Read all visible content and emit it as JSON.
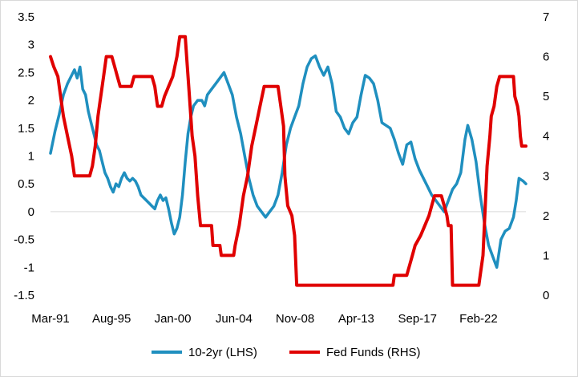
{
  "chart_data": {
    "type": "line",
    "title": "",
    "x_tick_labels": [
      "Mar-91",
      "Aug-95",
      "Jan-00",
      "Jun-04",
      "Nov-08",
      "Apr-13",
      "Sep-17",
      "Feb-22"
    ],
    "x_tick_values": [
      1991.17,
      1995.58,
      2000.0,
      2004.42,
      2008.83,
      2013.25,
      2017.67,
      2022.08
    ],
    "x_range": [
      1991.17,
      2025.5
    ],
    "y_left": {
      "min": -1.5,
      "max": 3.5,
      "ticks": [
        "-1.5",
        "-1",
        "-0.5",
        "0",
        "0.5",
        "1",
        "1.5",
        "2",
        "2.5",
        "3",
        "3.5"
      ]
    },
    "y_right": {
      "min": 0,
      "max": 7,
      "ticks": [
        "0",
        "1",
        "2",
        "3",
        "4",
        "5",
        "6",
        "7"
      ]
    },
    "gridlines": false,
    "legend_position": "bottom",
    "series": [
      {
        "name": "10-2yr (LHS)",
        "axis": "left",
        "color": "#1f8fbf",
        "points": [
          [
            1991.17,
            1.05
          ],
          [
            1991.5,
            1.45
          ],
          [
            1991.8,
            1.75
          ],
          [
            1992.1,
            2.1
          ],
          [
            1992.4,
            2.3
          ],
          [
            1992.7,
            2.45
          ],
          [
            1992.9,
            2.55
          ],
          [
            1993.1,
            2.4
          ],
          [
            1993.3,
            2.6
          ],
          [
            1993.5,
            2.2
          ],
          [
            1993.7,
            2.1
          ],
          [
            1993.9,
            1.8
          ],
          [
            1994.1,
            1.6
          ],
          [
            1994.3,
            1.4
          ],
          [
            1994.5,
            1.2
          ],
          [
            1994.7,
            1.1
          ],
          [
            1994.9,
            0.9
          ],
          [
            1995.1,
            0.7
          ],
          [
            1995.3,
            0.6
          ],
          [
            1995.5,
            0.45
          ],
          [
            1995.7,
            0.35
          ],
          [
            1995.9,
            0.5
          ],
          [
            1996.1,
            0.45
          ],
          [
            1996.3,
            0.6
          ],
          [
            1996.5,
            0.7
          ],
          [
            1996.7,
            0.6
          ],
          [
            1996.9,
            0.55
          ],
          [
            1997.1,
            0.6
          ],
          [
            1997.3,
            0.55
          ],
          [
            1997.5,
            0.45
          ],
          [
            1997.7,
            0.3
          ],
          [
            1997.9,
            0.25
          ],
          [
            1998.1,
            0.2
          ],
          [
            1998.3,
            0.15
          ],
          [
            1998.5,
            0.1
          ],
          [
            1998.7,
            0.05
          ],
          [
            1998.9,
            0.2
          ],
          [
            1999.1,
            0.3
          ],
          [
            1999.3,
            0.2
          ],
          [
            1999.5,
            0.25
          ],
          [
            1999.7,
            0.05
          ],
          [
            1999.9,
            -0.2
          ],
          [
            2000.1,
            -0.4
          ],
          [
            2000.3,
            -0.3
          ],
          [
            2000.5,
            -0.1
          ],
          [
            2000.7,
            0.3
          ],
          [
            2000.9,
            0.9
          ],
          [
            2001.1,
            1.4
          ],
          [
            2001.3,
            1.7
          ],
          [
            2001.5,
            1.9
          ],
          [
            2001.8,
            2.0
          ],
          [
            2002.1,
            2.0
          ],
          [
            2002.3,
            1.9
          ],
          [
            2002.5,
            2.1
          ],
          [
            2002.8,
            2.2
          ],
          [
            2003.1,
            2.3
          ],
          [
            2003.4,
            2.4
          ],
          [
            2003.7,
            2.5
          ],
          [
            2004.0,
            2.3
          ],
          [
            2004.3,
            2.1
          ],
          [
            2004.6,
            1.7
          ],
          [
            2004.9,
            1.4
          ],
          [
            2005.2,
            1.0
          ],
          [
            2005.5,
            0.6
          ],
          [
            2005.8,
            0.3
          ],
          [
            2006.1,
            0.1
          ],
          [
            2006.4,
            0.0
          ],
          [
            2006.7,
            -0.1
          ],
          [
            2007.0,
            0.0
          ],
          [
            2007.3,
            0.1
          ],
          [
            2007.6,
            0.3
          ],
          [
            2007.9,
            0.7
          ],
          [
            2008.2,
            1.2
          ],
          [
            2008.5,
            1.5
          ],
          [
            2008.8,
            1.7
          ],
          [
            2009.1,
            1.9
          ],
          [
            2009.4,
            2.3
          ],
          [
            2009.7,
            2.6
          ],
          [
            2010.0,
            2.75
          ],
          [
            2010.3,
            2.8
          ],
          [
            2010.6,
            2.6
          ],
          [
            2010.9,
            2.45
          ],
          [
            2011.2,
            2.6
          ],
          [
            2011.5,
            2.3
          ],
          [
            2011.8,
            1.8
          ],
          [
            2012.1,
            1.7
          ],
          [
            2012.4,
            1.5
          ],
          [
            2012.7,
            1.4
          ],
          [
            2013.0,
            1.6
          ],
          [
            2013.3,
            1.7
          ],
          [
            2013.6,
            2.1
          ],
          [
            2013.9,
            2.45
          ],
          [
            2014.2,
            2.4
          ],
          [
            2014.5,
            2.3
          ],
          [
            2014.8,
            2.0
          ],
          [
            2015.1,
            1.6
          ],
          [
            2015.4,
            1.55
          ],
          [
            2015.7,
            1.5
          ],
          [
            2016.0,
            1.3
          ],
          [
            2016.3,
            1.05
          ],
          [
            2016.6,
            0.85
          ],
          [
            2016.9,
            1.2
          ],
          [
            2017.2,
            1.25
          ],
          [
            2017.5,
            0.95
          ],
          [
            2017.8,
            0.75
          ],
          [
            2018.1,
            0.6
          ],
          [
            2018.4,
            0.45
          ],
          [
            2018.7,
            0.3
          ],
          [
            2019.0,
            0.2
          ],
          [
            2019.3,
            0.1
          ],
          [
            2019.6,
            0.0
          ],
          [
            2019.9,
            0.2
          ],
          [
            2020.2,
            0.4
          ],
          [
            2020.5,
            0.5
          ],
          [
            2020.8,
            0.7
          ],
          [
            2021.1,
            1.3
          ],
          [
            2021.3,
            1.55
          ],
          [
            2021.6,
            1.3
          ],
          [
            2021.9,
            0.9
          ],
          [
            2022.2,
            0.3
          ],
          [
            2022.5,
            -0.2
          ],
          [
            2022.8,
            -0.6
          ],
          [
            2023.1,
            -0.8
          ],
          [
            2023.4,
            -1.0
          ],
          [
            2023.7,
            -0.5
          ],
          [
            2024.0,
            -0.35
          ],
          [
            2024.3,
            -0.3
          ],
          [
            2024.6,
            -0.1
          ],
          [
            2024.8,
            0.2
          ],
          [
            2025.0,
            0.6
          ],
          [
            2025.3,
            0.55
          ],
          [
            2025.5,
            0.5
          ]
        ]
      },
      {
        "name": "Fed Funds (RHS)",
        "axis": "right",
        "color": "#e00000",
        "points": [
          [
            1991.17,
            6.0
          ],
          [
            1991.4,
            5.75
          ],
          [
            1991.7,
            5.5
          ],
          [
            1991.9,
            5.0
          ],
          [
            1992.1,
            4.5
          ],
          [
            1992.4,
            4.0
          ],
          [
            1992.7,
            3.5
          ],
          [
            1992.9,
            3.0
          ],
          [
            1993.5,
            3.0
          ],
          [
            1994.0,
            3.0
          ],
          [
            1994.2,
            3.25
          ],
          [
            1994.4,
            3.75
          ],
          [
            1994.6,
            4.5
          ],
          [
            1994.8,
            5.0
          ],
          [
            1995.0,
            5.5
          ],
          [
            1995.2,
            6.0
          ],
          [
            1995.6,
            6.0
          ],
          [
            1995.8,
            5.75
          ],
          [
            1996.0,
            5.5
          ],
          [
            1996.2,
            5.25
          ],
          [
            1997.0,
            5.25
          ],
          [
            1997.2,
            5.5
          ],
          [
            1998.5,
            5.5
          ],
          [
            1998.7,
            5.25
          ],
          [
            1998.9,
            4.75
          ],
          [
            1999.2,
            4.75
          ],
          [
            1999.4,
            5.0
          ],
          [
            1999.7,
            5.25
          ],
          [
            2000.0,
            5.5
          ],
          [
            2000.3,
            6.0
          ],
          [
            2000.5,
            6.5
          ],
          [
            2000.9,
            6.5
          ],
          [
            2001.0,
            6.0
          ],
          [
            2001.2,
            5.0
          ],
          [
            2001.4,
            4.0
          ],
          [
            2001.6,
            3.5
          ],
          [
            2001.8,
            2.5
          ],
          [
            2002.0,
            1.75
          ],
          [
            2002.8,
            1.75
          ],
          [
            2002.9,
            1.25
          ],
          [
            2003.4,
            1.25
          ],
          [
            2003.5,
            1.0
          ],
          [
            2004.4,
            1.0
          ],
          [
            2004.5,
            1.25
          ],
          [
            2004.8,
            1.75
          ],
          [
            2005.1,
            2.5
          ],
          [
            2005.4,
            3.0
          ],
          [
            2005.7,
            3.75
          ],
          [
            2006.0,
            4.25
          ],
          [
            2006.3,
            4.75
          ],
          [
            2006.6,
            5.25
          ],
          [
            2007.6,
            5.25
          ],
          [
            2007.8,
            4.75
          ],
          [
            2008.0,
            4.25
          ],
          [
            2008.1,
            3.0
          ],
          [
            2008.3,
            2.25
          ],
          [
            2008.6,
            2.0
          ],
          [
            2008.8,
            1.5
          ],
          [
            2008.95,
            0.25
          ],
          [
            2015.9,
            0.25
          ],
          [
            2016.0,
            0.5
          ],
          [
            2016.9,
            0.5
          ],
          [
            2017.1,
            0.75
          ],
          [
            2017.3,
            1.0
          ],
          [
            2017.5,
            1.25
          ],
          [
            2017.9,
            1.5
          ],
          [
            2018.2,
            1.75
          ],
          [
            2018.5,
            2.0
          ],
          [
            2018.7,
            2.25
          ],
          [
            2018.9,
            2.5
          ],
          [
            2019.4,
            2.5
          ],
          [
            2019.6,
            2.25
          ],
          [
            2019.8,
            2.0
          ],
          [
            2019.9,
            1.75
          ],
          [
            2020.1,
            1.75
          ],
          [
            2020.2,
            0.25
          ],
          [
            2022.1,
            0.25
          ],
          [
            2022.2,
            0.5
          ],
          [
            2022.4,
            1.0
          ],
          [
            2022.5,
            1.75
          ],
          [
            2022.7,
            3.25
          ],
          [
            2022.9,
            4.0
          ],
          [
            2023.0,
            4.5
          ],
          [
            2023.2,
            4.75
          ],
          [
            2023.4,
            5.25
          ],
          [
            2023.6,
            5.5
          ],
          [
            2024.6,
            5.5
          ],
          [
            2024.7,
            5.0
          ],
          [
            2024.9,
            4.75
          ],
          [
            2025.0,
            4.5
          ],
          [
            2025.1,
            4.0
          ],
          [
            2025.2,
            3.75
          ],
          [
            2025.5,
            3.75
          ]
        ]
      }
    ]
  }
}
